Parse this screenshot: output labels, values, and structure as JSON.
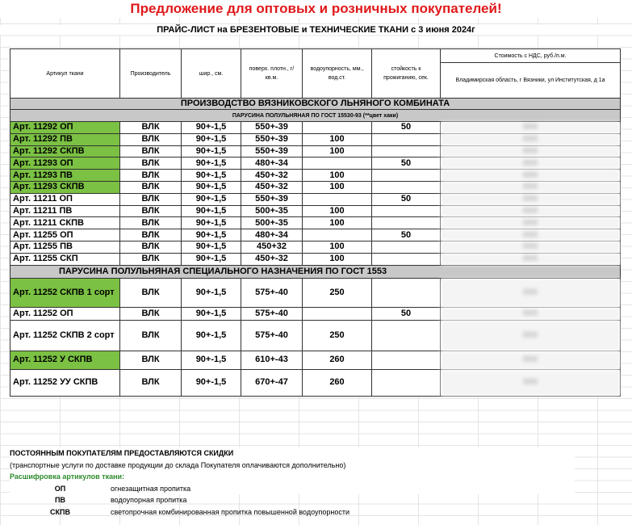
{
  "title": "Предложение для оптовых и розничных покупателей!",
  "subtitle": "ПРАЙС-ЛИСТ на БРЕЗЕНТОВЫЕ и ТЕХНИЧЕСКИЕ ТКАНИ с 3 июня 2024г",
  "headers": {
    "article": "Артикул ткани",
    "maker": "Производитель",
    "width": "шир., см.",
    "density": "поверх. плотн., г/кв.м.",
    "water": "водоупорность, мм., вод.ст.",
    "burn": "стойкость к прожиганию, сек.",
    "cost": "Стоимость с НДС, руб./п.м.",
    "location": "Владимирская область, г Вязники, ул Институтская, д 1а"
  },
  "section1": "ПРОИЗВОДСТВО ВЯЗНИКОВСКОГО ЛЬНЯНОГО КОМБИНАТА",
  "subsection1": "ПАРУСИНА ПОЛУЛЬНЯНАЯ ПО ГОСТ 15530-93 (**цвет хаки)",
  "rows1": [
    {
      "art": "Арт. 11292 ОП",
      "maker": "ВЛК",
      "width": "90+-1,5",
      "density": "550+-39",
      "water": "",
      "burn": "50",
      "price": "000",
      "green": true
    },
    {
      "art": "Арт. 11292 ПВ",
      "maker": "ВЛК",
      "width": "90+-1,5",
      "density": "550+-39",
      "water": "100",
      "burn": "",
      "price": "000",
      "green": true
    },
    {
      "art": "Арт. 11292 СКПВ",
      "maker": "ВЛК",
      "width": "90+-1,5",
      "density": "550+-39",
      "water": "100",
      "burn": "",
      "price": "000",
      "green": true
    },
    {
      "art": "Арт. 11293 ОП",
      "maker": "ВЛК",
      "width": "90+-1,5",
      "density": "480+-34",
      "water": "",
      "burn": "50",
      "price": "000",
      "green": true
    },
    {
      "art": "Арт. 11293 ПВ",
      "maker": "ВЛК",
      "width": "90+-1,5",
      "density": "450+-32",
      "water": "100",
      "burn": "",
      "price": "000",
      "green": true
    },
    {
      "art": "Арт. 11293 СКПВ",
      "maker": "ВЛК",
      "width": "90+-1,5",
      "density": "450+-32",
      "water": "100",
      "burn": "",
      "price": "000",
      "green": true
    },
    {
      "art": "Арт. 11211 ОП",
      "maker": "ВЛК",
      "width": "90+-1,5",
      "density": "550+-39",
      "water": "",
      "burn": "50",
      "price": "000",
      "green": false
    },
    {
      "art": "Арт. 11211 ПВ",
      "maker": "ВЛК",
      "width": "90+-1,5",
      "density": "500+-35",
      "water": "100",
      "burn": "",
      "price": "000",
      "green": false
    },
    {
      "art": "Арт. 11211 СКПВ",
      "maker": "ВЛК",
      "width": "90+-1,5",
      "density": "500+-35",
      "water": "100",
      "burn": "",
      "price": "000",
      "green": false
    },
    {
      "art": "Арт. 11255 ОП",
      "maker": "ВЛК",
      "width": "90+-1,5",
      "density": "480+-34",
      "water": "",
      "burn": "50",
      "price": "000",
      "green": false
    },
    {
      "art": "Арт. 11255 ПВ",
      "maker": "ВЛК",
      "width": "90+-1,5",
      "density": "450+32",
      "water": "100",
      "burn": "",
      "price": "000",
      "green": false
    },
    {
      "art": "Арт. 11255 СКП",
      "maker": "ВЛК",
      "width": "90+-1,5",
      "density": "450+-32",
      "water": "100",
      "burn": "",
      "price": "000",
      "green": false
    }
  ],
  "section2": "ПАРУСИНА  ПОЛУЛЬНЯНАЯ СПЕЦИАЛЬНОГО НАЗНАЧЕНИЯ ПО ГОСТ 1553",
  "rows2": [
    {
      "art": "Арт. 11252  СКПВ 1 сорт",
      "maker": "ВЛК",
      "width": "90+-1,5",
      "density": "575+-40",
      "water": "250",
      "burn": "",
      "price": "000",
      "green": true,
      "h": 36
    },
    {
      "art": "Арт. 11252  ОП",
      "maker": "ВЛК",
      "width": "90+-1,5",
      "density": "575+-40",
      "water": "",
      "burn": "50",
      "price": "000",
      "green": false,
      "h": 16
    },
    {
      "art": "Арт. 11252 СКПВ 2 сорт",
      "maker": "ВЛК",
      "width": "90+-1,5",
      "density": "575+-40",
      "water": "250",
      "burn": "",
      "price": "000",
      "green": false,
      "h": 38
    },
    {
      "art": "Арт. 11252 У СКПВ",
      "maker": "ВЛК",
      "width": "90+-1,5",
      "density": "610+-43",
      "water": "260",
      "burn": "",
      "price": "000",
      "green": true,
      "h": 23
    },
    {
      "art": "Арт. 11252 УУ СКПВ",
      "maker": "ВЛК",
      "width": "90+-1,5",
      "density": "670+-47",
      "water": "260",
      "burn": "",
      "price": "000",
      "green": false,
      "h": 33
    }
  ],
  "notes": {
    "discount": "ПОСТОЯННЫМ  ПОКУПАТЕЛЯМ ПРЕДОСТАВЛЯЮТСЯ СКИДКИ",
    "transport": "(транспортные услуги по доставке продукции до склада Покупателя оплачиваются дополнительно)",
    "legend_title": "Расшифровка артикулов ткани:",
    "legend": [
      {
        "code": "ОП",
        "desc": "огнезащитная пропитка"
      },
      {
        "code": "ПВ",
        "desc": "водоупорная пропитка"
      },
      {
        "code": "СКПВ",
        "desc": "светопрочная комбинированная пропитка повышенной водоупорности"
      }
    ]
  }
}
